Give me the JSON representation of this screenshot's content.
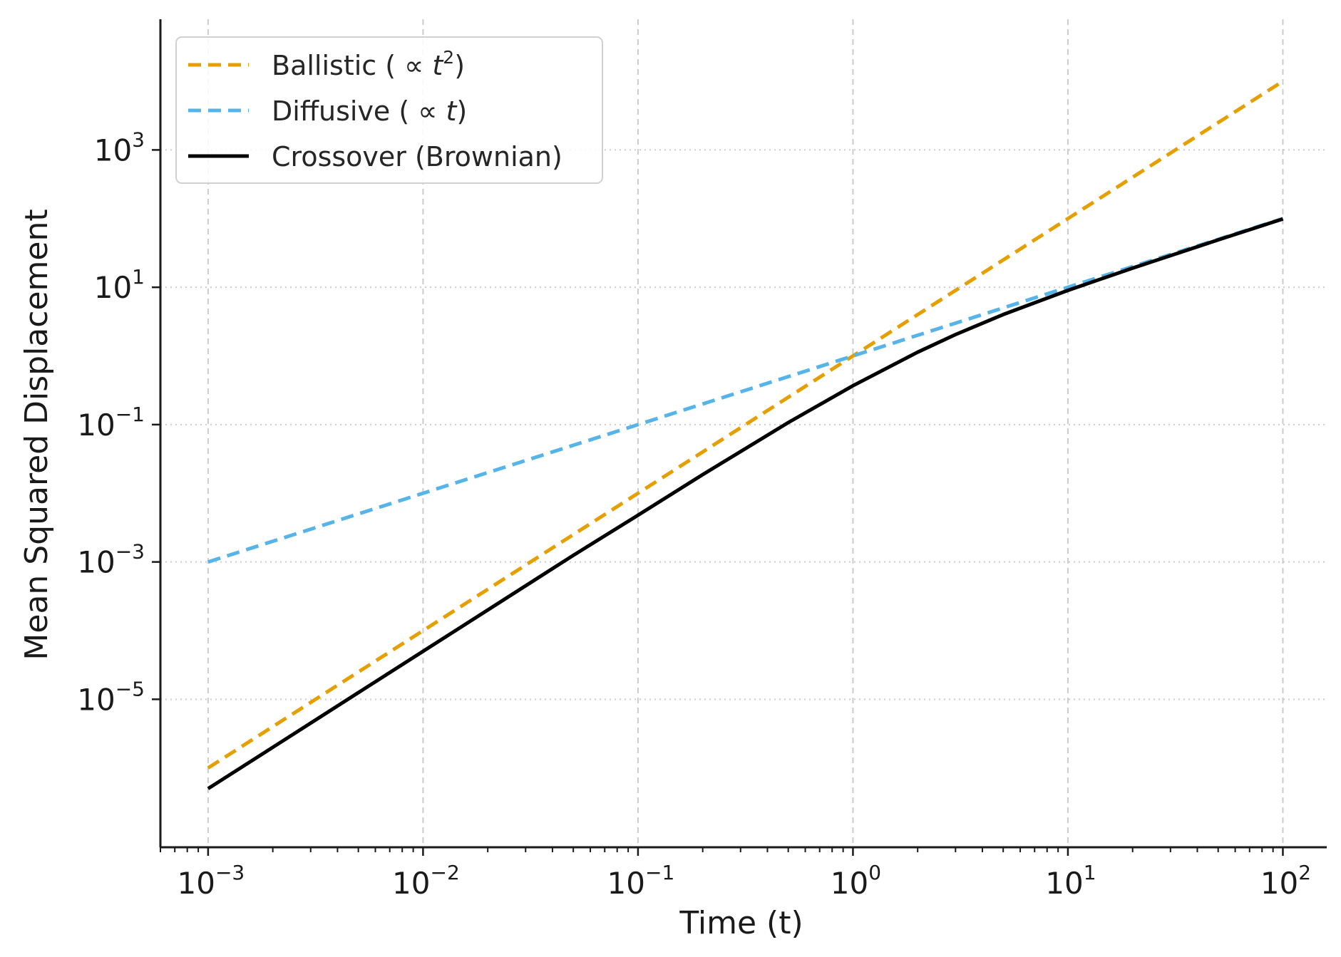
{
  "chart_data": {
    "type": "line",
    "xlabel": "Time (t)",
    "ylabel": "Mean Squared Displacement",
    "xscale": "log",
    "yscale": "log",
    "xlim": [
      0.0006,
      160
    ],
    "ylim": [
      7e-08,
      80000
    ],
    "grid": true,
    "legend_position": "top-left",
    "x_ticks": [
      {
        "base": "10",
        "exp": "−3",
        "value": 0.001
      },
      {
        "base": "10",
        "exp": "−2",
        "value": 0.01
      },
      {
        "base": "10",
        "exp": "−1",
        "value": 0.1
      },
      {
        "base": "10",
        "exp": "0",
        "value": 1
      },
      {
        "base": "10",
        "exp": "1",
        "value": 10
      },
      {
        "base": "10",
        "exp": "2",
        "value": 100
      }
    ],
    "y_ticks": [
      {
        "base": "10",
        "exp": "−5",
        "value": 1e-05
      },
      {
        "base": "10",
        "exp": "−3",
        "value": 0.001
      },
      {
        "base": "10",
        "exp": "−1",
        "value": 0.1
      },
      {
        "base": "10",
        "exp": "1",
        "value": 10
      },
      {
        "base": "10",
        "exp": "3",
        "value": 1000
      }
    ],
    "series": [
      {
        "name": "Ballistic ( ∝ t²)",
        "legend": {
          "prefix": "Ballistic ( ∝ ",
          "var": "t",
          "sup": "2",
          "suffix": ")"
        },
        "color": "#E69F00",
        "style": "dashed",
        "x": [
          0.001,
          0.01,
          0.1,
          1,
          10,
          100
        ],
        "y": [
          1e-06,
          0.0001,
          0.01,
          1,
          100,
          10000
        ]
      },
      {
        "name": "Diffusive ( ∝ t)",
        "legend": {
          "prefix": "Diffusive ( ∝ ",
          "var": "t",
          "sup": "",
          "suffix": ")"
        },
        "color": "#56B4E9",
        "style": "dashed",
        "x": [
          0.001,
          0.01,
          0.1,
          1,
          10,
          100
        ],
        "y": [
          0.001,
          0.01,
          0.1,
          1,
          10,
          100
        ]
      },
      {
        "name": "Crossover (Brownian)",
        "legend": {
          "prefix": "Crossover (Brownian)",
          "var": "",
          "sup": "",
          "suffix": ""
        },
        "color": "#000000",
        "style": "solid",
        "x": [
          0.001,
          0.002,
          0.005,
          0.01,
          0.02,
          0.05,
          0.1,
          0.2,
          0.5,
          1,
          2,
          3,
          5,
          10,
          20,
          50,
          100
        ],
        "y": [
          5e-07,
          2e-06,
          1.25e-05,
          5e-05,
          0.0002,
          0.00125,
          0.0048,
          0.0187,
          0.107,
          0.368,
          1.135,
          2.05,
          4.01,
          9.0,
          19.0,
          49.0,
          99.0
        ]
      }
    ]
  }
}
